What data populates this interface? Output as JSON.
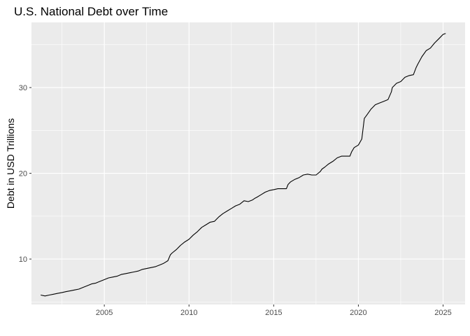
{
  "chart_data": {
    "type": "line",
    "title": "U.S. National Debt over Time",
    "xlabel": "",
    "ylabel": "Debt in USD Trillions",
    "x_type": "year",
    "xlim": [
      2000.7,
      2026.3
    ],
    "ylim": [
      4.7,
      37.6
    ],
    "x_ticks": [
      2005,
      2010,
      2015,
      2020,
      2025
    ],
    "y_ticks": [
      10,
      20,
      30
    ],
    "grid": true,
    "legend": "none",
    "colors": {
      "line": "#000000",
      "panel": "#ebebeb",
      "grid": "#ffffff",
      "tick_text": "#4d4d4d",
      "tick_mark": "#333333"
    },
    "series": [
      {
        "x": [
          2001.25,
          2001.5,
          2001.75,
          2002.0,
          2002.25,
          2002.5,
          2002.75,
          2003.0,
          2003.25,
          2003.5,
          2003.75,
          2004.0,
          2004.25,
          2004.5,
          2004.75,
          2005.0,
          2005.25,
          2005.5,
          2005.75,
          2006.0,
          2006.25,
          2006.5,
          2006.75,
          2007.0,
          2007.25,
          2007.5,
          2007.75,
          2008.0,
          2008.25,
          2008.5,
          2008.75,
          2008.9,
          2009.0,
          2009.25,
          2009.5,
          2009.75,
          2010.0,
          2010.25,
          2010.5,
          2010.75,
          2011.0,
          2011.25,
          2011.5,
          2011.6,
          2011.75,
          2012.0,
          2012.25,
          2012.5,
          2012.75,
          2013.0,
          2013.25,
          2013.5,
          2013.75,
          2013.9,
          2014.0,
          2014.25,
          2014.5,
          2014.75,
          2015.0,
          2015.25,
          2015.5,
          2015.75,
          2015.85,
          2016.0,
          2016.25,
          2016.5,
          2016.75,
          2017.0,
          2017.25,
          2017.5,
          2017.75,
          2017.85,
          2018.0,
          2018.25,
          2018.5,
          2018.75,
          2019.0,
          2019.25,
          2019.5,
          2019.6,
          2019.75,
          2020.0,
          2020.2,
          2020.35,
          2020.5,
          2020.75,
          2021.0,
          2021.25,
          2021.5,
          2021.75,
          2021.95,
          2022.0,
          2022.25,
          2022.5,
          2022.75,
          2023.0,
          2023.25,
          2023.4,
          2023.5,
          2023.75,
          2024.0,
          2024.25,
          2024.5,
          2024.75,
          2025.0,
          2025.15
        ],
        "y": [
          5.8,
          5.7,
          5.8,
          5.9,
          6.0,
          6.1,
          6.2,
          6.3,
          6.4,
          6.5,
          6.7,
          6.9,
          7.1,
          7.2,
          7.4,
          7.6,
          7.8,
          7.9,
          8.0,
          8.2,
          8.3,
          8.4,
          8.5,
          8.6,
          8.8,
          8.9,
          9.0,
          9.1,
          9.3,
          9.5,
          9.8,
          10.5,
          10.7,
          11.1,
          11.6,
          12.0,
          12.3,
          12.8,
          13.2,
          13.7,
          14.0,
          14.3,
          14.4,
          14.6,
          14.9,
          15.3,
          15.6,
          15.9,
          16.2,
          16.4,
          16.8,
          16.7,
          16.9,
          17.1,
          17.2,
          17.5,
          17.8,
          18.0,
          18.1,
          18.2,
          18.2,
          18.2,
          18.7,
          19.0,
          19.3,
          19.5,
          19.8,
          19.9,
          19.8,
          19.8,
          20.2,
          20.5,
          20.7,
          21.1,
          21.4,
          21.8,
          22.0,
          22.0,
          22.0,
          22.5,
          23.0,
          23.3,
          24.0,
          26.4,
          26.8,
          27.5,
          28.0,
          28.2,
          28.4,
          28.6,
          29.5,
          30.0,
          30.5,
          30.7,
          31.2,
          31.4,
          31.5,
          32.3,
          32.7,
          33.6,
          34.3,
          34.6,
          35.2,
          35.7,
          36.2,
          36.3
        ]
      }
    ]
  }
}
